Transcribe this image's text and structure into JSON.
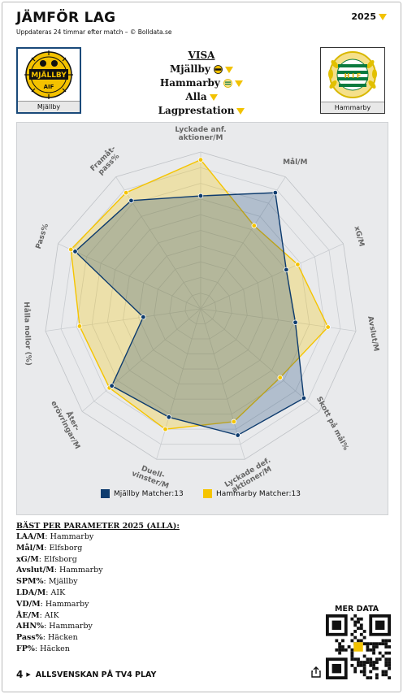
{
  "header": {
    "title": "JÄMFÖR LAG",
    "subtitle": "Uppdateras 24 timmar efter match – © Bolldata.se",
    "year": "2025"
  },
  "teams": {
    "left": {
      "name": "Mjällby",
      "logo_text": "MJÄLLBY AIF",
      "color": "#0d3b6e"
    },
    "right": {
      "name": "Hammarby",
      "logo_text": "H I F",
      "color": "#f5c400"
    }
  },
  "visa": {
    "heading": "VISA",
    "team1": "Mjällby",
    "team2": "Hammarby",
    "filter": "Alla",
    "mode": "Lagprestation"
  },
  "chart_data": {
    "type": "radar",
    "axes": [
      "Lyckade anf. aktioner/M",
      "Mål/M",
      "xG/M",
      "Avslut/M",
      "Skott på mål%",
      "Lyckade def. aktioner/M",
      "Duell-vinster/M",
      "Åter-erövringar/M",
      "Hålla nollor (%)",
      "Pass%",
      "Framåt-pass%"
    ],
    "range": [
      0,
      1
    ],
    "grid": true,
    "legend_position": "bottom",
    "series": [
      {
        "name": "Mjällby Matcher:13",
        "color": "#0d3b6e",
        "values": [
          0.72,
          0.88,
          0.6,
          0.61,
          0.87,
          0.84,
          0.72,
          0.75,
          0.37,
          0.88,
          0.82
        ]
      },
      {
        "name": "Hammarby Matcher:13",
        "color": "#f5c400",
        "values": [
          0.95,
          0.63,
          0.68,
          0.82,
          0.67,
          0.75,
          0.8,
          0.77,
          0.78,
          0.91,
          0.88
        ]
      }
    ]
  },
  "best": {
    "heading": "BÄST PER PARAMETER 2025 (ALLA):",
    "rows": [
      {
        "key": "LAA/M",
        "value": "Hammarby"
      },
      {
        "key": "Mål/M",
        "value": "Elfsborg"
      },
      {
        "key": "xG/M",
        "value": "Elfsborg"
      },
      {
        "key": "Avslut/M",
        "value": "Hammarby"
      },
      {
        "key": "SPM%",
        "value": "Mjällby"
      },
      {
        "key": "LDA/M",
        "value": "AIK"
      },
      {
        "key": "VD/M",
        "value": "Hammarby"
      },
      {
        "key": "ÅE/M",
        "value": "AIK"
      },
      {
        "key": "AHN%",
        "value": "Hammarby"
      },
      {
        "key": "Pass%",
        "value": "Häcken"
      },
      {
        "key": "FP%",
        "value": "Häcken"
      }
    ]
  },
  "more": {
    "label": "MER DATA"
  },
  "footer": {
    "number": "4",
    "text": "ALLSVENSKAN PÅ TV4 PLAY"
  }
}
